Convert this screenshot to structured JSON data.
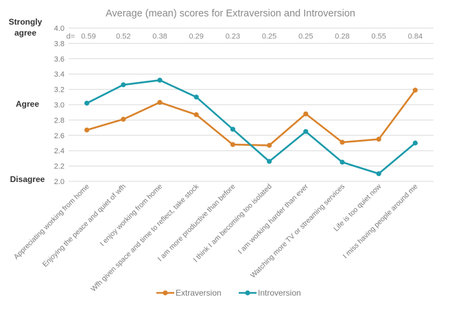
{
  "chart_data": {
    "type": "line",
    "title": "Average (mean) scores for Extraversion and Introversion",
    "categories": [
      "Appreciating working from home",
      "Enjoying the peace and quiet of wfh",
      "I enjoy working from home",
      "Wfh given space and time to reflect, take stock",
      "I am more productive than before",
      "I think I am becoming too isolated",
      "I am working harder than ever",
      "Watching more TV or streaming services",
      "Life is too quiet now",
      "I miss having people around me"
    ],
    "series": [
      {
        "name": "Extraversion",
        "color": "#D9822B",
        "values": [
          2.67,
          2.81,
          3.03,
          2.87,
          2.48,
          2.47,
          2.88,
          2.51,
          2.55,
          3.19
        ]
      },
      {
        "name": "Introversion",
        "color": "#1B9AAA",
        "values": [
          3.02,
          3.26,
          3.32,
          3.1,
          2.68,
          2.26,
          2.65,
          2.25,
          2.1,
          2.5
        ]
      }
    ],
    "d_prefix": "d=",
    "d_values": [
      "0.59",
      "0.52",
      "0.38",
      "0.29",
      "0.23",
      "0.25",
      "0.25",
      "0.28",
      "0.55",
      "0.84"
    ],
    "yticks": [
      "2.0",
      "2.2",
      "2.4",
      "2.6",
      "2.8",
      "3.0",
      "3.2",
      "3.4",
      "3.6",
      "3.8",
      "4.0"
    ],
    "ylim": [
      2.0,
      4.0
    ],
    "scale_labels": {
      "strongly_agree_line1": "Strongly",
      "strongly_agree_line2": "agree",
      "agree": "Agree",
      "disagree": "Disagree"
    },
    "grid": "horizontal",
    "legend_position": "bottom-center"
  }
}
